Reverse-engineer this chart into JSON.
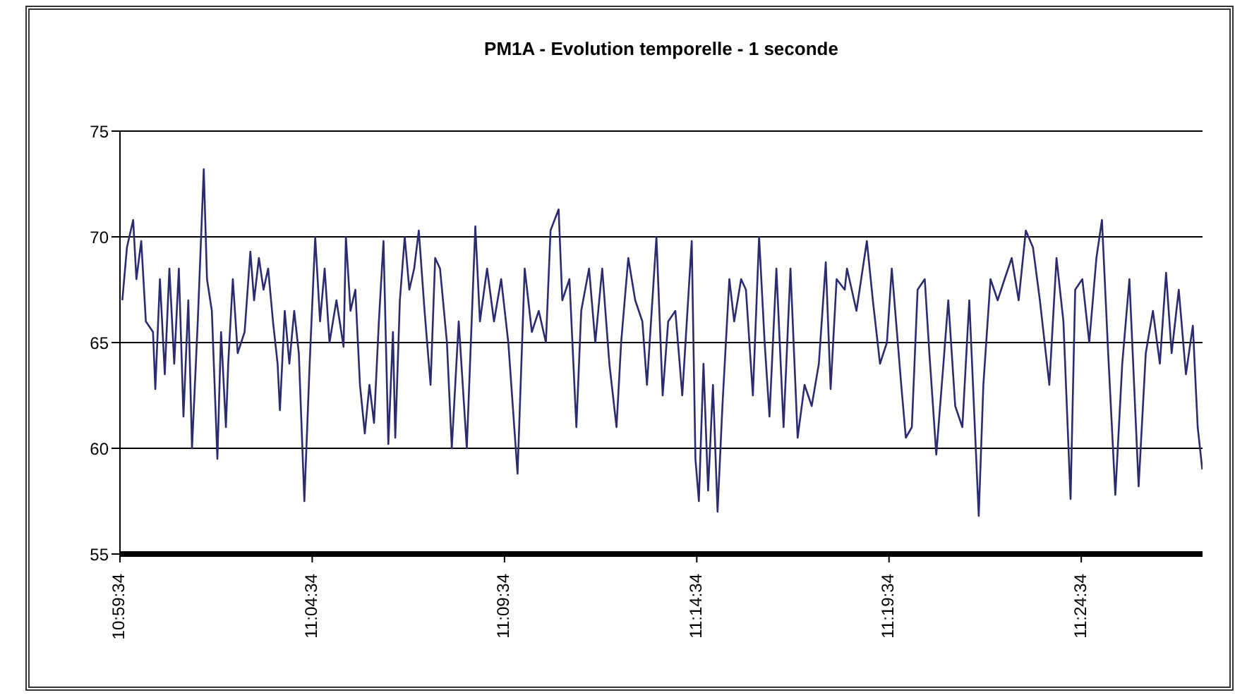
{
  "chart_data": {
    "type": "line",
    "title": "PM1A - Evolution temporelle - 1 seconde",
    "x": [
      10.9938,
      10.9958,
      10.9985,
      10.9999,
      11.002,
      11.004,
      11.0071,
      11.0081,
      11.0101,
      11.0122,
      11.0142,
      11.0163,
      11.0183,
      11.0203,
      11.0224,
      11.024,
      11.0265,
      11.0291,
      11.0305,
      11.0326,
      11.035,
      11.0366,
      11.0387,
      11.0397,
      11.0417,
      11.0438,
      11.0468,
      11.0493,
      11.0509,
      11.053,
      11.055,
      11.057,
      11.0591,
      11.0611,
      11.0621,
      11.0642,
      11.0662,
      11.0683,
      11.0703,
      11.0727,
      11.075,
      11.0774,
      11.0795,
      11.0815,
      11.0836,
      11.0866,
      11.0897,
      11.0907,
      11.0927,
      11.0948,
      11.0968,
      11.0989,
      11.1009,
      11.1029,
      11.105,
      11.107,
      11.1091,
      11.1111,
      11.1121,
      11.1141,
      11.1162,
      11.1182,
      11.1203,
      11.1223,
      11.1248,
      11.1274,
      11.1294,
      11.1315,
      11.1345,
      11.1366,
      11.1396,
      11.1431,
      11.1468,
      11.1488,
      11.1519,
      11.1549,
      11.158,
      11.1611,
      11.1651,
      11.1682,
      11.1713,
      11.1743,
      11.1774,
      11.1794,
      11.1829,
      11.1845,
      11.1876,
      11.1906,
      11.1927,
      11.1961,
      11.1988,
      11.2018,
      11.2049,
      11.208,
      11.21,
      11.2131,
      11.2161,
      11.2192,
      11.2212,
      11.2253,
      11.228,
      11.2304,
      11.2335,
      11.2365,
      11.2406,
      11.2422,
      11.2437,
      11.2457,
      11.2477,
      11.2498,
      11.2518,
      11.2539,
      11.2569,
      11.259,
      11.262,
      11.2641,
      11.2671,
      11.2698,
      11.2722,
      11.2743,
      11.2773,
      11.2804,
      11.2834,
      11.2865,
      11.2895,
      11.2926,
      11.2957,
      11.2987,
      11.3008,
      11.3034,
      11.3069,
      11.3079,
      11.312,
      11.3165,
      11.3191,
      11.3222,
      11.3252,
      11.3273,
      11.3314,
      11.3334,
      11.336,
      11.3385,
      11.3416,
      11.3436,
      11.3466,
      11.3497,
      11.3518,
      11.3548,
      11.3579,
      11.3609,
      11.365,
      11.367,
      11.3701,
      11.3732,
      11.3762,
      11.3793,
      11.3823,
      11.3854,
      11.3885,
      11.3915,
      11.3956,
      11.3987,
      11.4017,
      11.4048,
      11.4068,
      11.4099,
      11.4129,
      11.416,
      11.4184,
      11.4211,
      11.4242,
      11.4272,
      11.4303,
      11.4343,
      11.4374,
      11.4405,
      11.4435,
      11.4462,
      11.4486,
      11.4517,
      11.4548,
      11.4578,
      11.4599,
      11.4619
    ],
    "series": [
      {
        "color": "#2b2b70",
        "values": [
          67,
          69.5,
          70.8,
          68,
          69.8,
          66,
          65.5,
          62.8,
          68,
          63.5,
          68.5,
          64,
          68.5,
          61.5,
          67,
          60,
          66,
          73.2,
          68,
          66.5,
          59.5,
          65.5,
          61,
          64,
          68,
          64.5,
          65.5,
          69.3,
          67,
          69,
          67.5,
          68.5,
          66,
          64,
          61.8,
          66.5,
          64,
          66.5,
          64.5,
          57.5,
          64,
          70,
          66,
          68.5,
          65,
          67,
          64.8,
          70,
          66.5,
          67.5,
          63,
          60.7,
          63,
          61.2,
          66,
          69.8,
          60.2,
          65.5,
          60.5,
          67,
          70,
          67.5,
          68.5,
          70.3,
          66.5,
          63,
          69,
          68.5,
          65,
          60,
          66,
          60,
          70.5,
          66,
          68.5,
          66,
          68,
          65,
          58.8,
          68.5,
          65.5,
          66.5,
          65,
          70.3,
          71.3,
          67,
          68,
          61,
          66.5,
          68.5,
          65,
          68.5,
          64,
          61,
          65,
          69,
          67,
          66,
          63,
          70,
          62.5,
          66,
          66.5,
          62.5,
          69.8,
          59.5,
          57.5,
          64,
          58,
          63,
          57,
          62,
          68,
          66,
          68,
          67.5,
          62.5,
          70,
          65,
          61.5,
          68.5,
          61,
          68.5,
          60.5,
          63,
          62,
          64,
          68.8,
          62.8,
          68,
          67.5,
          68.5,
          66.5,
          69.8,
          67,
          64,
          65,
          68.5,
          63,
          60.5,
          61,
          67.5,
          68,
          64.5,
          59.7,
          64,
          67,
          62,
          61,
          67,
          56.8,
          63,
          68,
          67,
          68,
          69,
          67,
          70.3,
          69.5,
          67,
          63,
          69,
          66,
          57.6,
          67.5,
          68,
          65,
          69,
          70.8,
          64.5,
          57.8,
          64,
          68,
          58.2,
          64.5,
          66.5,
          64,
          68.3,
          64.5,
          67.5,
          63.5,
          65.8,
          61,
          59
        ]
      }
    ],
    "xlim": [
      10.99278,
      11.462
    ],
    "xticks": [
      {
        "value": 10.99278,
        "label": "10:59:34"
      },
      {
        "value": 11.07611,
        "label": "11:04:34"
      },
      {
        "value": 11.15944,
        "label": "11:09:34"
      },
      {
        "value": 11.24278,
        "label": "11:14:34"
      },
      {
        "value": 11.32611,
        "label": "11:19:34"
      },
      {
        "value": 11.40944,
        "label": "11:24:34"
      }
    ],
    "ylim": [
      55,
      75
    ],
    "yticks": [
      55,
      60,
      65,
      70,
      75
    ],
    "grid": "y",
    "marker": "none",
    "line_style": "solid"
  }
}
